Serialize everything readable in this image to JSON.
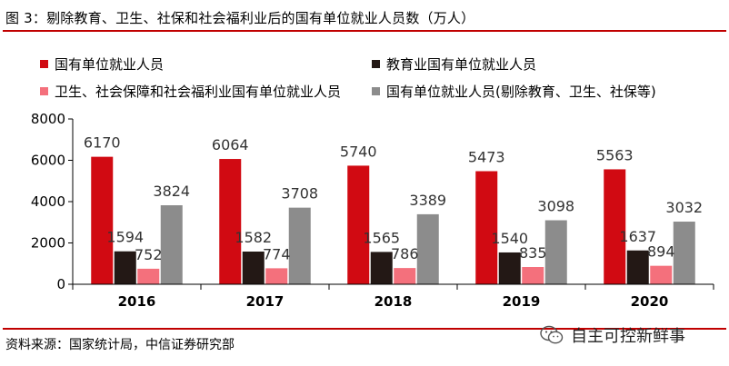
{
  "figure_title": "图 3：剔除教育、卫生、社保和社会福利业后的国有单位就业人员数（万人）",
  "source": "资料来源：国家统计局，中信证券研究部",
  "watermark": "自主可控新鲜事",
  "colors": {
    "rule": "#c00000",
    "series": [
      "#d10a12",
      "#231815",
      "#f4707c",
      "#8c8c8c"
    ]
  },
  "chart_data": {
    "type": "bar",
    "title": "",
    "xlabel": "",
    "ylabel": "",
    "categories": [
      "2016",
      "2017",
      "2018",
      "2019",
      "2020"
    ],
    "ylim": [
      0,
      8000
    ],
    "yticks": [
      "0",
      "2000",
      "4000",
      "6000",
      "8000"
    ],
    "legend_position": "top",
    "series": [
      {
        "name": "国有单位就业人员",
        "values": [
          6170,
          6064,
          5740,
          5473,
          5563
        ]
      },
      {
        "name": "教育业国有单位就业人员",
        "values": [
          1594,
          1582,
          1565,
          1540,
          1637
        ]
      },
      {
        "name": "卫生、社会保障和社会福利业国有单位就业人员",
        "values": [
          752,
          774,
          786,
          835,
          894
        ]
      },
      {
        "name": "国有单位就业人员(剔除教育、卫生、社保等)",
        "values": [
          3824,
          3708,
          3389,
          3098,
          3032
        ]
      }
    ]
  }
}
